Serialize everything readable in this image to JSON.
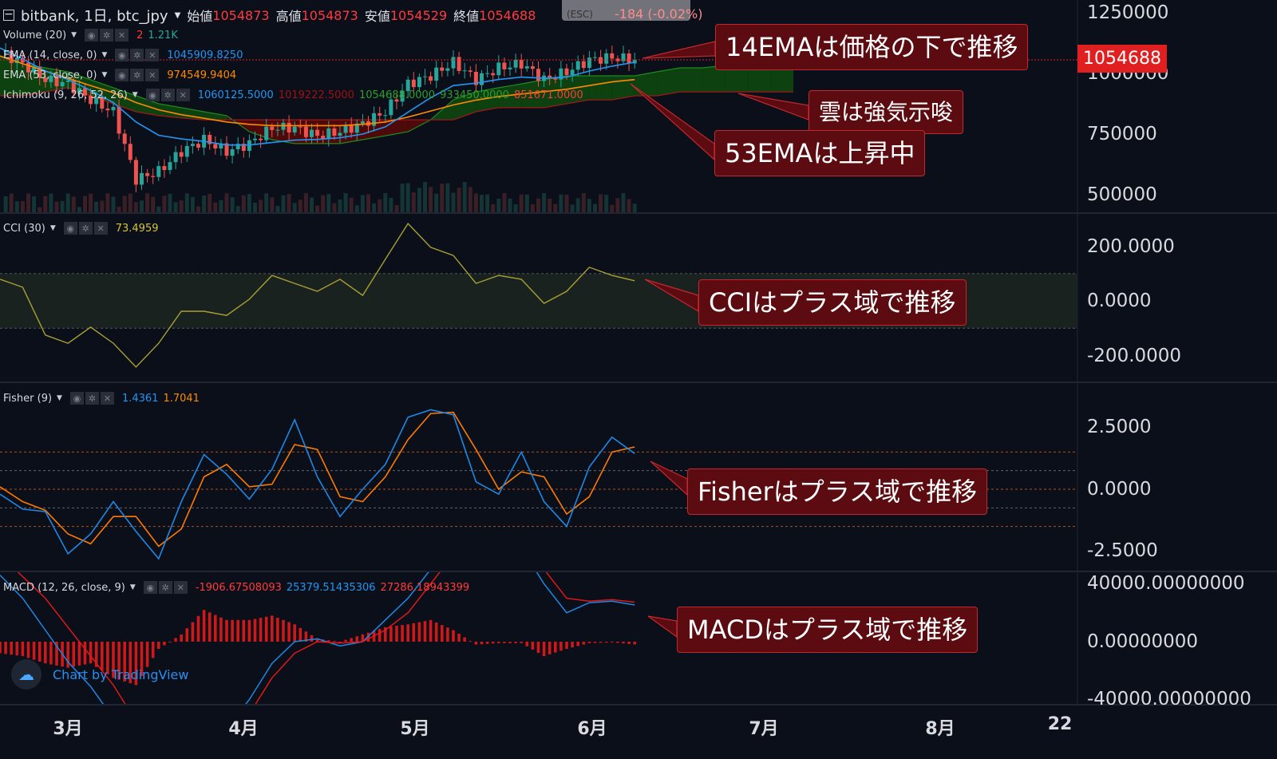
{
  "header": {
    "symbol": "bitbank, 1日, btc_jpy",
    "open_label": "始値",
    "open": "1054873",
    "high_label": "高値",
    "high": "1054873",
    "low_label": "安値",
    "low": "1054529",
    "close_label": "終値",
    "close": "1054688",
    "change": "-184 (-0.02%)",
    "tooltip": "(ESC)"
  },
  "legends": {
    "volume": {
      "label": "Volume (20)",
      "v1": "2",
      "v2": "1.21K"
    },
    "ema14": {
      "label": "EMA (14, close, 0)",
      "value": "1045909.8250"
    },
    "ema53": {
      "label": "EMA (53, close, 0)",
      "value": "974549.9404"
    },
    "ichimoku": {
      "label": "Ichimoku (9, 26, 52, 26)",
      "v1": "1060125.5000",
      "v2": "1019222.5000",
      "v3": "1054688.0000",
      "v4": "933450.0000",
      "v5": "851671.0000"
    },
    "cci": {
      "label": "CCI (30)",
      "value": "73.4959"
    },
    "fisher": {
      "label": "Fisher (9)",
      "v1": "1.4361",
      "v2": "1.7041"
    },
    "macd": {
      "label": "MACD (12, 26, close, 9)",
      "v1": "-1906.67508093",
      "v2": "25379.51435306",
      "v3": "27286.18943399"
    }
  },
  "price_axis": {
    "main": [
      "1250000",
      "1000000",
      "750000",
      "500000"
    ],
    "cci": [
      "200.0000",
      "0.0000",
      "-200.0000"
    ],
    "fisher": [
      "2.5000",
      "0.0000",
      "-2.5000"
    ],
    "macd": [
      "40000.00000000",
      "0.00000000",
      "-40000.00000000"
    ],
    "last_price": "1054688"
  },
  "time_axis": [
    "3月",
    "4月",
    "5月",
    "6月",
    "7月",
    "8月",
    "22"
  ],
  "annotations": [
    "14EMAは価格の下で推移",
    "雲は強気示唆",
    "53EMAは上昇中",
    "CCIはプラス域で推移",
    "Fisherはプラス域で推移",
    "MACDはプラス域で推移"
  ],
  "watermark": "Chart by TradingView",
  "colors": {
    "bg": "#0b0f1a",
    "up": "#26a69a",
    "down": "#ef5350",
    "ema14": "#2196f3",
    "ema53": "#ff8a00",
    "cci": "#a8a032",
    "note_bg": "#5c0c10",
    "note_border": "#c3282e",
    "last_price": "#e02020"
  },
  "chart_data": [
    {
      "type": "line",
      "title": "bitbank, 1日, btc_jpy",
      "x": [
        "02-17",
        "02-21",
        "02-25",
        "03-01",
        "03-05",
        "03-09",
        "03-13",
        "03-17",
        "03-21",
        "03-25",
        "03-29",
        "04-02",
        "04-06",
        "04-10",
        "04-14",
        "04-18",
        "04-22",
        "04-26",
        "04-30",
        "05-04",
        "05-08",
        "05-12",
        "05-16",
        "05-20",
        "05-24",
        "05-28",
        "06-01",
        "06-05",
        "06-09"
      ],
      "close": [
        1089000,
        1040000,
        974000,
        957000,
        891000,
        842000,
        563000,
        596000,
        678000,
        727000,
        678000,
        711000,
        776000,
        776000,
        743000,
        760000,
        793000,
        842000,
        957000,
        990000,
        1046000,
        974000,
        1023000,
        1040000,
        974000,
        1007000,
        1056000,
        1066000,
        1054688
      ],
      "ema14": [
        1105000,
        1060000,
        1010000,
        975000,
        930000,
        880000,
        800000,
        745000,
        730000,
        720000,
        705000,
        705000,
        715000,
        725000,
        728000,
        735000,
        750000,
        780000,
        840000,
        900000,
        950000,
        960000,
        975000,
        985000,
        980000,
        985000,
        1010000,
        1030000,
        1045910
      ],
      "ema53": [
        1072000,
        1040000,
        1010000,
        980000,
        950000,
        920000,
        880000,
        850000,
        830000,
        815000,
        800000,
        790000,
        785000,
        785000,
        785000,
        785000,
        790000,
        800000,
        820000,
        845000,
        870000,
        890000,
        905000,
        915000,
        925000,
        935000,
        950000,
        965000,
        974550
      ],
      "cloud_x": [
        "02-17",
        "02-21",
        "02-25",
        "03-01",
        "03-05",
        "03-09",
        "03-13",
        "03-17",
        "03-21",
        "03-25",
        "03-29",
        "04-02",
        "04-06",
        "04-10",
        "04-14",
        "04-18",
        "04-22",
        "04-26",
        "04-30",
        "05-04",
        "05-08",
        "05-12",
        "05-16",
        "05-20",
        "05-24",
        "05-28",
        "06-01",
        "06-05",
        "06-09",
        "06-13",
        "06-17",
        "06-21",
        "06-25",
        "06-29",
        "07-03",
        "07-07"
      ],
      "span_a": [
        1072000,
        1039000,
        1023000,
        1007000,
        974000,
        941000,
        908000,
        875000,
        859000,
        842000,
        826000,
        760000,
        727000,
        711000,
        711000,
        711000,
        727000,
        743000,
        760000,
        809000,
        891000,
        924000,
        941000,
        957000,
        974000,
        990000,
        990000,
        990000,
        990000,
        1007000,
        1023000,
        1023000,
        1033000,
        1039000,
        1039000,
        1039000
      ],
      "span_b": [
        908000,
        908000,
        924000,
        941000,
        908000,
        875000,
        842000,
        826000,
        816000,
        809000,
        809000,
        809000,
        809000,
        809000,
        809000,
        809000,
        809000,
        809000,
        809000,
        809000,
        809000,
        842000,
        859000,
        859000,
        859000,
        875000,
        891000,
        891000,
        908000,
        908000,
        924000,
        924000,
        924000,
        924000,
        924000,
        924000
      ],
      "ylim": [
        500000,
        1250000
      ]
    },
    {
      "type": "line",
      "title": "CCI (30)",
      "x": [
        "02-17",
        "02-21",
        "02-25",
        "03-01",
        "03-05",
        "03-09",
        "03-13",
        "03-17",
        "03-21",
        "03-25",
        "03-29",
        "04-02",
        "04-06",
        "04-10",
        "04-14",
        "04-18",
        "04-22",
        "04-26",
        "04-30",
        "05-04",
        "05-08",
        "05-12",
        "05-16",
        "05-20",
        "05-24",
        "05-28",
        "06-01",
        "06-05",
        "06-09"
      ],
      "values": [
        79,
        50,
        -125,
        -155,
        -96,
        -155,
        -242,
        -155,
        -38,
        -38,
        -53,
        6,
        93,
        64,
        35,
        79,
        20,
        152,
        283,
        196,
        166,
        64,
        93,
        79,
        -9,
        35,
        123,
        93,
        73.4959
      ],
      "band": [
        -100,
        100
      ],
      "ylim": [
        -200,
        200
      ]
    },
    {
      "type": "line",
      "title": "Fisher (9)",
      "x": [
        "02-17",
        "02-21",
        "02-25",
        "03-01",
        "03-05",
        "03-09",
        "03-13",
        "03-17",
        "03-21",
        "03-25",
        "03-29",
        "04-02",
        "04-06",
        "04-10",
        "04-14",
        "04-18",
        "04-22",
        "04-26",
        "04-30",
        "05-04",
        "05-08",
        "05-12",
        "05-16",
        "05-20",
        "05-24",
        "05-28",
        "06-01",
        "06-05",
        "06-09"
      ],
      "fisher": [
        -0.2,
        -0.8,
        -0.9,
        -2.6,
        -1.8,
        -0.5,
        -1.7,
        -2.8,
        -0.5,
        1.4,
        0.6,
        -0.4,
        0.8,
        2.8,
        0.5,
        -1.1,
        0.0,
        1.0,
        2.9,
        3.2,
        3.0,
        0.3,
        -0.2,
        1.5,
        -0.5,
        -1.5,
        0.9,
        2.1,
        1.4361
      ],
      "trigger": [
        0.1,
        -0.5,
        -0.85,
        -1.8,
        -2.2,
        -1.1,
        -1.1,
        -2.3,
        -1.6,
        0.5,
        1.0,
        0.1,
        0.2,
        1.8,
        1.6,
        -0.3,
        -0.5,
        0.5,
        2.0,
        3.05,
        3.1,
        1.6,
        0.0,
        0.7,
        0.5,
        -1.0,
        -0.3,
        1.5,
        1.7041
      ],
      "levels": [
        1.5,
        0.75,
        0,
        -0.75,
        -1.5
      ],
      "ylim": [
        -2.5,
        2.5
      ]
    },
    {
      "type": "line",
      "title": "MACD (12, 26, close, 9)",
      "x": [
        "02-17",
        "02-21",
        "02-25",
        "03-01",
        "03-05",
        "03-09",
        "03-13",
        "03-17",
        "03-21",
        "03-25",
        "03-29",
        "04-02",
        "04-06",
        "04-10",
        "04-14",
        "04-18",
        "04-22",
        "04-26",
        "04-30",
        "05-04",
        "05-08",
        "05-12",
        "05-16",
        "05-20",
        "05-24",
        "05-28",
        "06-01",
        "06-05",
        "06-09"
      ],
      "macd": [
        46000,
        30000,
        8000,
        -14000,
        -31000,
        -53000,
        -80000,
        -90000,
        -80000,
        -70000,
        -60000,
        -40000,
        -15000,
        0,
        2000,
        -3000,
        0,
        15000,
        30000,
        50000,
        70000,
        80000,
        80000,
        65000,
        40000,
        20000,
        27000,
        28000,
        25379.5
      ],
      "signal": [
        60000,
        45000,
        30000,
        10000,
        -10000,
        -30000,
        -55000,
        -70000,
        -80000,
        -75000,
        -65000,
        -50000,
        -25000,
        -8000,
        0,
        -1000,
        0,
        8000,
        20000,
        40000,
        60000,
        75000,
        80000,
        70000,
        50000,
        30000,
        28000,
        29000,
        27286.2
      ],
      "histogram": [
        -8000,
        -10000,
        -15000,
        -18000,
        -15000,
        -25000,
        -30000,
        -5000,
        5000,
        22000,
        15000,
        15000,
        18000,
        12000,
        2000,
        0,
        5000,
        10000,
        12000,
        15000,
        8000,
        -2000,
        -1000,
        -1000,
        -10000,
        -5000,
        -1000,
        -500,
        -1906.7
      ],
      "ylim": [
        -40000,
        40000
      ]
    }
  ]
}
